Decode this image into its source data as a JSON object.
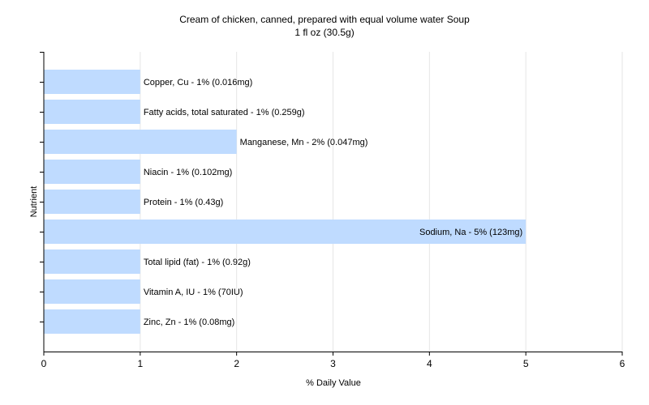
{
  "chart_data": {
    "type": "bar",
    "orientation": "horizontal",
    "title": "Cream of chicken, canned, prepared with equal volume water Soup",
    "subtitle": "1 fl oz (30.5g)",
    "xlabel": "% Daily Value",
    "ylabel": "Nutrient",
    "xlim": [
      0,
      6
    ],
    "xticks": [
      0,
      1,
      2,
      3,
      4,
      5,
      6
    ],
    "grid": true,
    "categories": [
      "Copper, Cu",
      "Fatty acids, total saturated",
      "Manganese, Mn",
      "Niacin",
      "Protein",
      "Sodium, Na",
      "Total lipid (fat)",
      "Vitamin A, IU",
      "Zinc, Zn"
    ],
    "values": [
      1,
      1,
      2,
      1,
      1,
      5,
      1,
      1,
      1
    ],
    "data_labels": [
      "Copper, Cu - 1% (0.016mg)",
      "Fatty acids, total saturated - 1% (0.259g)",
      "Manganese, Mn - 2% (0.047mg)",
      "Niacin - 1% (0.102mg)",
      "Protein - 1% (0.43g)",
      "Sodium, Na - 5% (123mg)",
      "Total lipid (fat) - 1% (0.92g)",
      "Vitamin A, IU - 1% (70IU)",
      "Zinc, Zn - 1% (0.08mg)"
    ],
    "colors": {
      "bar": "#bfdbff",
      "grid": "#e6e6e6",
      "axis": "#000000"
    }
  }
}
